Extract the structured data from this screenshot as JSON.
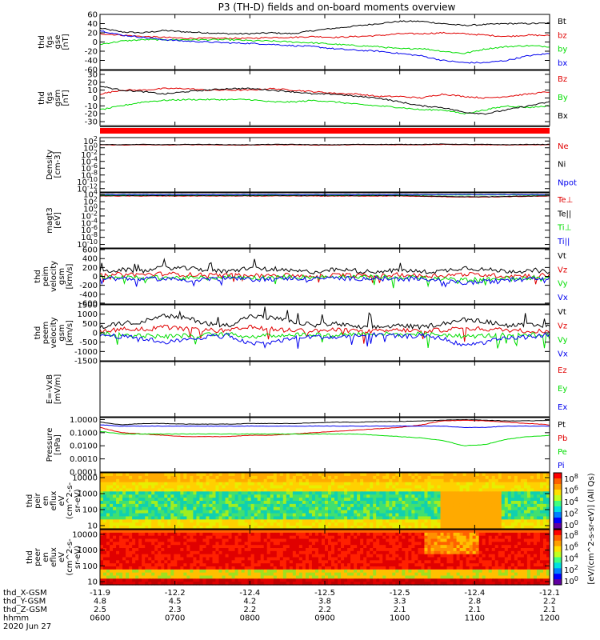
{
  "title": "P3 (TH-D) fields and on-board moments overview",
  "chart_data": [
    {
      "type": "line",
      "name": "fgs-gse",
      "ylabel": [
        "thd",
        "fgs",
        "gse",
        "[nT]"
      ],
      "yticks": [
        60,
        40,
        20,
        0,
        -20,
        -40,
        -60
      ],
      "ylim": [
        -60,
        60
      ],
      "series": [
        {
          "name": "Bt",
          "color": "#000000",
          "values": [
            30,
            22,
            20,
            25,
            22,
            20,
            18,
            18,
            20,
            18,
            25,
            30,
            35,
            40,
            45,
            45,
            40,
            36,
            38,
            40,
            40,
            41
          ]
        },
        {
          "name": "bz",
          "color": "#e00000",
          "values": [
            18,
            15,
            12,
            10,
            8,
            8,
            8,
            8,
            10,
            10,
            12,
            10,
            12,
            14,
            18,
            18,
            20,
            18,
            15,
            12,
            15,
            14
          ]
        },
        {
          "name": "by",
          "color": "#00dd00",
          "values": [
            -5,
            2,
            5,
            5,
            5,
            5,
            5,
            3,
            2,
            0,
            -2,
            -5,
            -8,
            -10,
            -15,
            -14,
            -20,
            -25,
            -15,
            -10,
            -8,
            -10
          ]
        },
        {
          "name": "bx",
          "color": "#0000ee",
          "values": [
            25,
            15,
            10,
            5,
            2,
            0,
            -2,
            -3,
            -5,
            -8,
            -10,
            -15,
            -18,
            -20,
            -25,
            -30,
            -40,
            -45,
            -45,
            -40,
            -30,
            -25
          ]
        }
      ]
    },
    {
      "type": "line",
      "name": "fgs-gsm",
      "ylabel": [
        "thd",
        "fgs",
        "gsm",
        "[nT]"
      ],
      "yticks": [
        30,
        20,
        10,
        0,
        -10,
        -20,
        -30
      ],
      "ylim": [
        -35,
        35
      ],
      "series": [
        {
          "name": "Bz",
          "color": "#e00000",
          "values": [
            5,
            10,
            10,
            12,
            12,
            10,
            10,
            10,
            12,
            10,
            8,
            6,
            5,
            2,
            2,
            0,
            5,
            2,
            0,
            2,
            5,
            8
          ]
        },
        {
          "name": "By",
          "color": "#00dd00",
          "values": [
            -15,
            -10,
            -5,
            -3,
            -2,
            -2,
            -2,
            -2,
            -5,
            -5,
            -3,
            -5,
            -8,
            -10,
            -12,
            -15,
            -15,
            -20,
            -15,
            -10,
            -12,
            -10
          ]
        },
        {
          "name": "Bx",
          "color": "#000000",
          "values": [
            15,
            10,
            8,
            5,
            8,
            10,
            12,
            12,
            10,
            8,
            5,
            5,
            2,
            0,
            -5,
            -10,
            -12,
            -18,
            -20,
            -15,
            -10,
            -5
          ]
        }
      ]
    },
    {
      "type": "area",
      "name": "density",
      "ylabel": [
        "Density",
        "[cm-3]"
      ],
      "scale": "log",
      "yticks": [
        "10^2",
        "10^0",
        "10^-2",
        "10^-4",
        "10^-6",
        "10^-8",
        "10^-10",
        "10^-12"
      ],
      "ylim": [
        -13,
        3
      ],
      "series": [
        {
          "name": "Ne",
          "color": "#e00000",
          "values": [
            0.9,
            0.8,
            0.9,
            0.8,
            0.9,
            0.9,
            0.8,
            0.8,
            0.9,
            0.9,
            0.8,
            0.8,
            0.9,
            0.9,
            0.9,
            0.9,
            1.0,
            0.9,
            0.9,
            0.8,
            0.9,
            0.9
          ]
        },
        {
          "name": "Ni",
          "color": "#000000",
          "values": [
            1.0,
            0.9,
            1.0,
            0.9,
            1.0,
            1.0,
            0.9,
            0.9,
            1.0,
            1.0,
            0.9,
            0.9,
            1.0,
            1.0,
            1.0,
            1.0,
            1.1,
            1.0,
            1.0,
            0.9,
            1.0,
            1.0
          ]
        },
        {
          "name": "Npot",
          "color": "#0000ee",
          "values": []
        }
      ]
    },
    {
      "type": "line",
      "name": "temperature",
      "ylabel": [
        "magt3",
        "[eV]"
      ],
      "scale": "log",
      "yticks": [
        "10^4",
        "10^2",
        "10^0",
        "10^-2",
        "10^-4",
        "10^-6",
        "10^-8",
        "10^-10"
      ],
      "ylim": [
        -11,
        4.5
      ],
      "series": [
        {
          "name": "Te⊥",
          "color": "#e00000",
          "values": [
            3.6,
            3.6,
            3.6,
            3.6,
            3.6,
            3.6,
            3.6,
            3.6,
            3.6,
            3.6,
            3.6,
            3.6,
            3.6,
            3.6,
            3.6,
            3.5,
            3.4,
            3.3,
            3.3,
            3.4,
            3.5,
            3.6
          ]
        },
        {
          "name": "Te||",
          "color": "#000000",
          "values": [
            3.7,
            3.7,
            3.7,
            3.7,
            3.7,
            3.7,
            3.7,
            3.7,
            3.7,
            3.7,
            3.7,
            3.7,
            3.7,
            3.7,
            3.7,
            3.6,
            3.5,
            3.4,
            3.4,
            3.5,
            3.6,
            3.7
          ]
        },
        {
          "name": "Ti⊥",
          "color": "#00dd00",
          "values": [
            3.9,
            3.9,
            3.9,
            3.9,
            3.9,
            3.9,
            3.9,
            3.9,
            3.9,
            3.9,
            3.9,
            3.9,
            3.9,
            3.9,
            3.9,
            3.9,
            3.9,
            3.9,
            3.9,
            3.9,
            3.9,
            3.9
          ]
        },
        {
          "name": "Ti||",
          "color": "#0000ee",
          "values": [
            4.0,
            4.0,
            4.0,
            4.0,
            4.0,
            4.0,
            4.0,
            4.0,
            4.0,
            4.0,
            4.0,
            4.0,
            4.0,
            4.0,
            4.0,
            4.0,
            4.0,
            4.0,
            4.0,
            4.0,
            4.0,
            4.0
          ]
        }
      ]
    },
    {
      "type": "line",
      "name": "peim-velocity",
      "ylabel": [
        "thd",
        "peim",
        "velocity",
        "gsm",
        "[km/s]"
      ],
      "yticks": [
        600,
        400,
        200,
        0,
        -200,
        -400,
        -600
      ],
      "ylim": [
        -620,
        620
      ],
      "series": [
        {
          "name": "Vt",
          "color": "#000000",
          "values": [
            100,
            150,
            120,
            200,
            180,
            150,
            100,
            200,
            150,
            120,
            100,
            150,
            120,
            100,
            150,
            100,
            120,
            200,
            150,
            120,
            120,
            110
          ]
        },
        {
          "name": "Vz",
          "color": "#e00000",
          "values": [
            20,
            50,
            40,
            60,
            40,
            30,
            20,
            50,
            30,
            20,
            10,
            30,
            20,
            10,
            40,
            10,
            20,
            50,
            30,
            10,
            20,
            30
          ]
        },
        {
          "name": "Vy",
          "color": "#00dd00",
          "values": [
            -10,
            -20,
            -30,
            -20,
            -40,
            -30,
            -10,
            -30,
            -20,
            -10,
            -20,
            -10,
            -20,
            -10,
            -30,
            -20,
            -60,
            -80,
            -60,
            -40,
            -30,
            -20
          ]
        },
        {
          "name": "Vx",
          "color": "#0000ee",
          "values": [
            -30,
            -50,
            -60,
            -50,
            -80,
            -60,
            -40,
            -70,
            -60,
            -40,
            -50,
            -40,
            -50,
            -40,
            -60,
            -50,
            -100,
            -150,
            -120,
            -80,
            -60,
            -40
          ]
        }
      ]
    },
    {
      "type": "line",
      "name": "peem-velocity",
      "ylabel": [
        "thd",
        "peem",
        "velocity",
        "gsm",
        "[km/s]"
      ],
      "yticks": [
        1500,
        1000,
        500,
        0,
        -500,
        -1000,
        -1500
      ],
      "ylim": [
        -1500,
        1500
      ],
      "series": [
        {
          "name": "Vt",
          "color": "#000000",
          "values": [
            300,
            500,
            600,
            900,
            800,
            500,
            400,
            900,
            800,
            600,
            400,
            500,
            300,
            300,
            400,
            300,
            500,
            700,
            600,
            400,
            400,
            350
          ]
        },
        {
          "name": "Vz",
          "color": "#e00000",
          "values": [
            100,
            200,
            200,
            300,
            200,
            150,
            100,
            300,
            200,
            150,
            100,
            150,
            100,
            80,
            150,
            100,
            150,
            250,
            200,
            150,
            100,
            100
          ]
        },
        {
          "name": "Vy",
          "color": "#00dd00",
          "values": [
            -50,
            -100,
            -150,
            -200,
            -150,
            -100,
            -80,
            -200,
            -150,
            -100,
            -80,
            -100,
            -60,
            -50,
            -80,
            -60,
            -100,
            -200,
            -150,
            -100,
            -80,
            -60
          ]
        },
        {
          "name": "Vx",
          "color": "#0000ee",
          "values": [
            -100,
            -200,
            -300,
            -500,
            -400,
            -200,
            -150,
            -600,
            -500,
            -300,
            -200,
            -250,
            -150,
            -100,
            -200,
            -150,
            -300,
            -700,
            -500,
            -300,
            -200,
            -150
          ]
        }
      ]
    },
    {
      "type": "line",
      "name": "e-field",
      "ylabel": [
        "E=-VxB",
        "[mV/m]"
      ],
      "yticks": [],
      "ylim": [
        0,
        1
      ],
      "series": [
        {
          "name": "Ez",
          "color": "#e00000",
          "values": []
        },
        {
          "name": "Ey",
          "color": "#00dd00",
          "values": []
        },
        {
          "name": "Ex",
          "color": "#0000ee",
          "values": []
        }
      ]
    },
    {
      "type": "line",
      "name": "pressure",
      "ylabel": [
        "Pressure",
        "[nPa]"
      ],
      "scale": "log",
      "yticks": [
        "1.0000",
        "0.1000",
        "0.0100",
        "0.0010",
        "0.0001"
      ],
      "ylim": [
        -4,
        0.15
      ],
      "series": [
        {
          "name": "Pt",
          "color": "#000000",
          "values": [
            -0.2,
            -0.4,
            -0.3,
            -0.3,
            -0.35,
            -0.35,
            -0.35,
            -0.3,
            -0.3,
            -0.3,
            -0.25,
            -0.2,
            -0.2,
            -0.15,
            -0.15,
            -0.1,
            -0.05,
            0,
            -0.05,
            -0.1,
            -0.1,
            -0.05
          ]
        },
        {
          "name": "Pb",
          "color": "#e00000",
          "values": [
            -0.6,
            -1.0,
            -1.1,
            -1.2,
            -1.3,
            -1.3,
            -1.3,
            -1.2,
            -1.2,
            -1.1,
            -1.0,
            -0.9,
            -0.8,
            -0.7,
            -0.6,
            -0.4,
            -0.1,
            -0.05,
            -0.1,
            -0.2,
            -0.3,
            -0.4
          ]
        },
        {
          "name": "Pe",
          "color": "#00dd00",
          "values": [
            -0.9,
            -1.1,
            -1.1,
            -1.1,
            -1.1,
            -1.1,
            -1.1,
            -1.1,
            -1.1,
            -1.1,
            -1.1,
            -1.1,
            -1.1,
            -1.2,
            -1.3,
            -1.4,
            -1.6,
            -2.0,
            -1.9,
            -1.5,
            -1.3,
            -1.2
          ]
        },
        {
          "name": "Pi",
          "color": "#0000ee",
          "values": [
            -0.4,
            -0.5,
            -0.5,
            -0.5,
            -0.5,
            -0.5,
            -0.5,
            -0.5,
            -0.5,
            -0.5,
            -0.5,
            -0.5,
            -0.5,
            -0.5,
            -0.5,
            -0.5,
            -0.5,
            -0.6,
            -0.6,
            -0.5,
            -0.5,
            -0.5
          ]
        }
      ]
    },
    {
      "type": "heatmap",
      "name": "peir-spectrogram",
      "ylabel": [
        "thd",
        "peir",
        "en",
        "eflux",
        "eV",
        "(cm^2-s-",
        "sr-eV)"
      ],
      "scale": "log",
      "yticks": [
        "10000",
        "1000",
        "100",
        "10"
      ],
      "ylim": [
        0.8,
        4.3
      ],
      "colorbar": {
        "ticks": [
          "10^8",
          "10^6",
          "10^4",
          "10^2",
          "10^0"
        ]
      }
    },
    {
      "type": "heatmap",
      "name": "peer-spectrogram",
      "ylabel": [
        "thd",
        "peer",
        "en",
        "eflux",
        "eV",
        "(cm^2-s-",
        "sr-eV)"
      ],
      "scale": "log",
      "yticks": [
        "10000",
        "1000",
        "100",
        "10"
      ],
      "ylim": [
        0.8,
        4.3
      ],
      "colorbar": {
        "ticks": [
          "10^8",
          "10^6",
          "10^4",
          "10^2",
          "10^0"
        ]
      }
    }
  ],
  "colorbar_label": "[eV/(cm^2-s-sr-eV)] (All Qs)",
  "xaxis": {
    "row_labels": [
      "thd_X-GSM",
      "thd_Y-GSM",
      "thd_Z-GSM",
      "hhmm",
      "2020 Jun 27"
    ],
    "columns": [
      [
        "-11.9",
        "4.8",
        "2.5",
        "0600"
      ],
      [
        "-12.2",
        "4.5",
        "2.3",
        "0700"
      ],
      [
        "-12.4",
        "4.2",
        "2.2",
        "0800"
      ],
      [
        "-12.5",
        "3.8",
        "2.2",
        "0900"
      ],
      [
        "-12.5",
        "3.3",
        "2.1",
        "1000"
      ],
      [
        "-12.4",
        "2.8",
        "2.1",
        "1100"
      ],
      [
        "-12.1",
        "2.2",
        "2.1",
        "1200"
      ]
    ]
  },
  "colors": {
    "black": "#000000",
    "red": "#e00000",
    "green": "#00dd00",
    "blue": "#0000ee"
  }
}
